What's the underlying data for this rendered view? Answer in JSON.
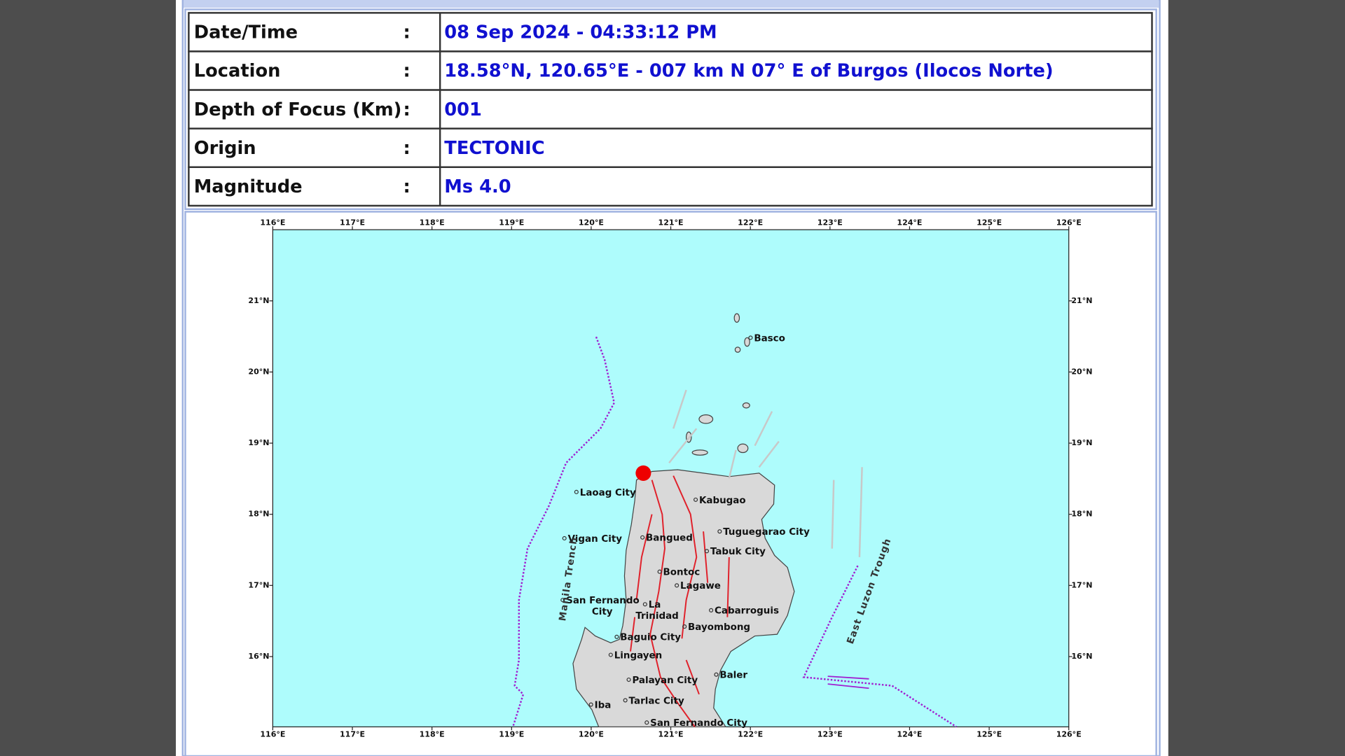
{
  "table": {
    "rows": [
      [
        "Date/Time",
        ":",
        "08 Sep 2024 - 04:33:12 PM"
      ],
      [
        "Location",
        ":",
        "18.58°N, 120.65°E - 007 km N 07° E of Burgos (Ilocos Norte)"
      ],
      [
        "Depth of Focus (Km)",
        ":",
        "001"
      ],
      [
        "Origin",
        ":",
        "TECTONIC"
      ],
      [
        "Magnitude",
        ":",
        "Ms 4.0"
      ]
    ]
  },
  "map": {
    "lon_ticks": [
      {
        "value": 116,
        "label": "116°E"
      },
      {
        "value": 117,
        "label": "117°E"
      },
      {
        "value": 118,
        "label": "118°E"
      },
      {
        "value": 119,
        "label": "119°E"
      },
      {
        "value": 120,
        "label": "120°E"
      },
      {
        "value": 121,
        "label": "121°E"
      },
      {
        "value": 122,
        "label": "122°E"
      },
      {
        "value": 123,
        "label": "123°E"
      },
      {
        "value": 124,
        "label": "124°E"
      },
      {
        "value": 125,
        "label": "125°E"
      },
      {
        "value": 126,
        "label": "126°E"
      }
    ],
    "lat_ticks": [
      {
        "value": 16,
        "label": "16°N"
      },
      {
        "value": 17,
        "label": "17°N"
      },
      {
        "value": 18,
        "label": "18°N"
      },
      {
        "value": 19,
        "label": "19°N"
      },
      {
        "value": 20,
        "label": "20°N"
      },
      {
        "value": 21,
        "label": "21°N"
      }
    ],
    "places": [
      {
        "lines": [
          "Basco"
        ]
      },
      {
        "lines": [
          "Laoag City"
        ]
      },
      {
        "lines": [
          "Kabugao"
        ]
      },
      {
        "lines": [
          "Vigan City"
        ]
      },
      {
        "lines": [
          "Bangued"
        ]
      },
      {
        "lines": [
          "Tuguegarao City"
        ]
      },
      {
        "lines": [
          "Tabuk City"
        ]
      },
      {
        "lines": [
          "Bontoc"
        ]
      },
      {
        "lines": [
          "Lagawe"
        ]
      },
      {
        "lines": [
          "San Fernando",
          "City"
        ]
      },
      {
        "lines": [
          "La",
          "Trinidad"
        ]
      },
      {
        "lines": [
          "Cabarroguis"
        ]
      },
      {
        "lines": [
          "Bayombong"
        ]
      },
      {
        "lines": [
          "Baguio City"
        ]
      },
      {
        "lines": [
          "Lingayen"
        ]
      },
      {
        "lines": [
          "Baler"
        ]
      },
      {
        "lines": [
          "Palayan City"
        ]
      },
      {
        "lines": [
          "Tarlac City"
        ]
      },
      {
        "lines": [
          "Iba"
        ]
      },
      {
        "lines": [
          "San Fernando City"
        ]
      }
    ],
    "features": [
      "Manila Trench",
      "East Luzon Trough"
    ]
  }
}
